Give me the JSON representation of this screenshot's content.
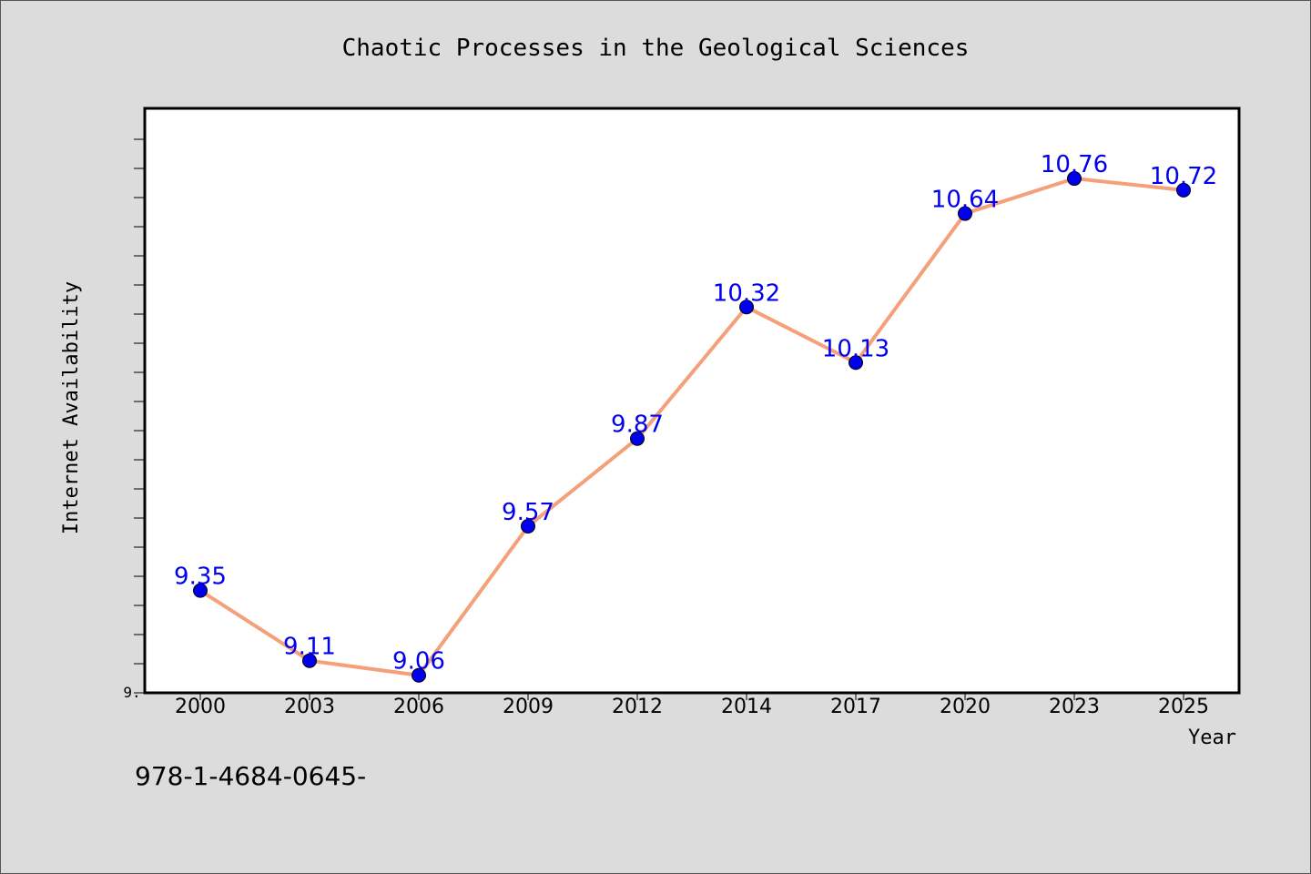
{
  "chart_data": {
    "type": "line",
    "title": "Chaotic Processes in the Geological Sciences",
    "xlabel": "Year",
    "ylabel": "Internet Availability",
    "categories": [
      "2000",
      "2003",
      "2006",
      "2009",
      "2012",
      "2014",
      "2017",
      "2020",
      "2023",
      "2025"
    ],
    "series": [
      {
        "values": [
          9.35,
          9.11,
          9.06,
          9.57,
          9.87,
          10.32,
          10.13,
          10.64,
          10.76,
          10.72
        ]
      }
    ],
    "data_labels": [
      "9.35",
      "9.11",
      "9.06",
      "9.57",
      "9.87",
      "10.32",
      "10.13",
      "10.64",
      "10.76",
      "10.72"
    ],
    "ytick_label": "9.",
    "ylim": [
      9.0,
      11.0
    ],
    "grid": false,
    "legend": "none",
    "line_color": "#f4a07a",
    "marker_color": "#0000ee",
    "data_label_color": "#0000ee",
    "background_color": "#dcdcdc",
    "plot_background_color": "#ffffff"
  },
  "footer": {
    "isbn": "978-1-4684-0645-"
  }
}
